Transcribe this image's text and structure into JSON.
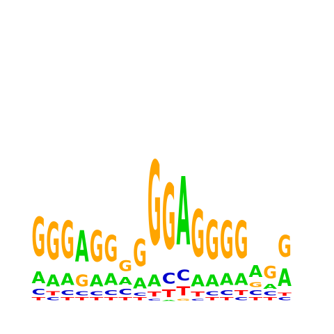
{
  "chart_data": {
    "type": "sequence-logo",
    "title": "",
    "xlabel": "",
    "ylabel": "",
    "alphabet": [
      "A",
      "C",
      "G",
      "T"
    ],
    "colors": {
      "A": "#00d400",
      "C": "#0000cc",
      "G": "#ffa500",
      "T": "#ff0000"
    },
    "ylim": [
      0,
      2
    ],
    "positions": [
      {
        "letters": [
          {
            "base": "T",
            "bits": 0.03
          },
          {
            "base": "C",
            "bits": 0.06
          },
          {
            "base": "A",
            "bits": 0.12
          },
          {
            "base": "G",
            "bits": 0.4
          }
        ]
      },
      {
        "letters": [
          {
            "base": "C",
            "bits": 0.03
          },
          {
            "base": "T",
            "bits": 0.04
          },
          {
            "base": "A",
            "bits": 0.12
          },
          {
            "base": "G",
            "bits": 0.38
          }
        ]
      },
      {
        "letters": [
          {
            "base": "T",
            "bits": 0.03
          },
          {
            "base": "C",
            "bits": 0.05
          },
          {
            "base": "A",
            "bits": 0.12
          },
          {
            "base": "G",
            "bits": 0.38
          }
        ]
      },
      {
        "letters": [
          {
            "base": "T",
            "bits": 0.03
          },
          {
            "base": "C",
            "bits": 0.04
          },
          {
            "base": "G",
            "bits": 0.12
          },
          {
            "base": "A",
            "bits": 0.32
          }
        ]
      },
      {
        "letters": [
          {
            "base": "T",
            "bits": 0.03
          },
          {
            "base": "C",
            "bits": 0.04
          },
          {
            "base": "A",
            "bits": 0.12
          },
          {
            "base": "G",
            "bits": 0.32
          }
        ]
      },
      {
        "letters": [
          {
            "base": "T",
            "bits": 0.03
          },
          {
            "base": "C",
            "bits": 0.05
          },
          {
            "base": "A",
            "bits": 0.12
          },
          {
            "base": "G",
            "bits": 0.27
          }
        ]
      },
      {
        "letters": [
          {
            "base": "T",
            "bits": 0.03
          },
          {
            "base": "C",
            "bits": 0.06
          },
          {
            "base": "A",
            "bits": 0.08
          },
          {
            "base": "G",
            "bits": 0.11
          }
        ]
      },
      {
        "letters": [
          {
            "base": "T",
            "bits": 0.03
          },
          {
            "base": "C",
            "bits": 0.03
          },
          {
            "base": "A",
            "bits": 0.11
          },
          {
            "base": "G",
            "bits": 0.28
          }
        ]
      },
      {
        "letters": [
          {
            "base": "C",
            "bits": 0.02
          },
          {
            "base": "T",
            "bits": 0.05
          },
          {
            "base": "A",
            "bits": 0.12
          },
          {
            "base": "G",
            "bits": 0.86
          }
        ]
      },
      {
        "letters": [
          {
            "base": "A",
            "bits": 0.01
          },
          {
            "base": "T",
            "bits": 0.08
          },
          {
            "base": "C",
            "bits": 0.11
          },
          {
            "base": "G",
            "bits": 0.67
          }
        ]
      },
      {
        "letters": [
          {
            "base": "G",
            "bits": 0.02
          },
          {
            "base": "T",
            "bits": 0.09
          },
          {
            "base": "C",
            "bits": 0.11
          },
          {
            "base": "A",
            "bits": 0.7
          }
        ]
      },
      {
        "letters": [
          {
            "base": "C",
            "bits": 0.02
          },
          {
            "base": "T",
            "bits": 0.05
          },
          {
            "base": "A",
            "bits": 0.12
          },
          {
            "base": "G",
            "bits": 0.48
          }
        ]
      },
      {
        "letters": [
          {
            "base": "T",
            "bits": 0.03
          },
          {
            "base": "C",
            "bits": 0.04
          },
          {
            "base": "A",
            "bits": 0.12
          },
          {
            "base": "G",
            "bits": 0.4
          }
        ]
      },
      {
        "letters": [
          {
            "base": "T",
            "bits": 0.03
          },
          {
            "base": "C",
            "bits": 0.05
          },
          {
            "base": "A",
            "bits": 0.12
          },
          {
            "base": "G",
            "bits": 0.38
          }
        ]
      },
      {
        "letters": [
          {
            "base": "C",
            "bits": 0.03
          },
          {
            "base": "T",
            "bits": 0.05
          },
          {
            "base": "A",
            "bits": 0.12
          },
          {
            "base": "G",
            "bits": 0.38
          }
        ]
      },
      {
        "letters": [
          {
            "base": "T",
            "bits": 0.03
          },
          {
            "base": "C",
            "bits": 0.05
          },
          {
            "base": "G",
            "bits": 0.05
          },
          {
            "base": "A",
            "bits": 0.12
          }
        ]
      },
      {
        "letters": [
          {
            "base": "T",
            "bits": 0.03
          },
          {
            "base": "C",
            "bits": 0.04
          },
          {
            "base": "A",
            "bits": 0.05
          },
          {
            "base": "G",
            "bits": 0.13
          }
        ]
      },
      {
        "letters": [
          {
            "base": "C",
            "bits": 0.03
          },
          {
            "base": "T",
            "bits": 0.03
          },
          {
            "base": "A",
            "bits": 0.18
          },
          {
            "base": "G",
            "bits": 0.22
          }
        ]
      }
    ]
  }
}
